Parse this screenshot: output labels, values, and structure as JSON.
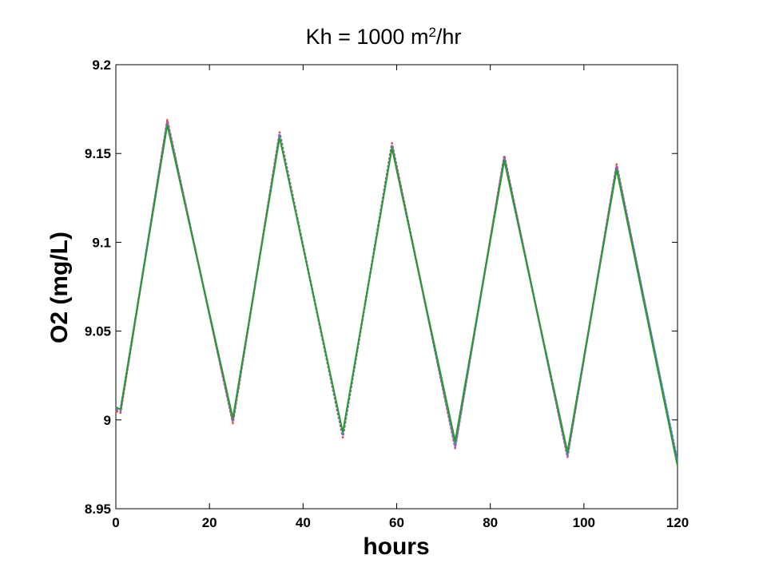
{
  "chart_data": {
    "type": "line",
    "title_main": "Kh = 1000 m",
    "title_sup": "2",
    "title_tail": "/hr",
    "xlabel": "hours",
    "ylabel": "O2 (mg/L)",
    "xlim": [
      0,
      120
    ],
    "ylim": [
      8.95,
      9.2
    ],
    "xticks": [
      0,
      20,
      40,
      60,
      80,
      100,
      120
    ],
    "xtick_labels": [
      "0",
      "20",
      "40",
      "60",
      "80",
      "100",
      "120"
    ],
    "yticks": [
      8.95,
      9.0,
      9.05,
      9.1,
      9.15,
      9.2
    ],
    "ytick_labels": [
      "8.95",
      "9",
      "9.05",
      "9.1",
      "9.15",
      "9.2"
    ],
    "grid": false,
    "legend": "none",
    "series": [
      {
        "color": "#d9534f",
        "x": [
          0,
          1,
          11,
          25,
          35,
          48.5,
          59,
          72.5,
          83,
          96.5,
          107,
          120
        ],
        "y": [
          9.005,
          9.004,
          9.169,
          8.998,
          9.162,
          8.99,
          9.156,
          8.984,
          9.149,
          8.979,
          9.144,
          8.975
        ]
      },
      {
        "color": "#a25cc7",
        "x": [
          0,
          1,
          11,
          25,
          35,
          48.5,
          59,
          72.5,
          83,
          96.5,
          107,
          120
        ],
        "y": [
          9.006,
          9.005,
          9.168,
          8.999,
          9.161,
          8.991,
          9.155,
          8.985,
          9.148,
          8.98,
          9.143,
          8.976
        ]
      },
      {
        "color": "#2f8fd8",
        "x": [
          0,
          1,
          11,
          25,
          35,
          48.5,
          59,
          72.5,
          83,
          96.5,
          107,
          120
        ],
        "y": [
          9.007,
          9.006,
          9.167,
          9.0,
          9.16,
          8.992,
          9.154,
          8.986,
          9.147,
          8.981,
          9.142,
          8.977
        ]
      },
      {
        "color": "#2a9a2a",
        "x": [
          0,
          1,
          11,
          25,
          35,
          48.5,
          59,
          72.5,
          83,
          96.5,
          107,
          120
        ],
        "y": [
          9.007,
          9.006,
          9.166,
          9.001,
          9.159,
          8.993,
          9.153,
          8.988,
          9.146,
          8.982,
          9.141,
          8.974
        ]
      }
    ]
  }
}
